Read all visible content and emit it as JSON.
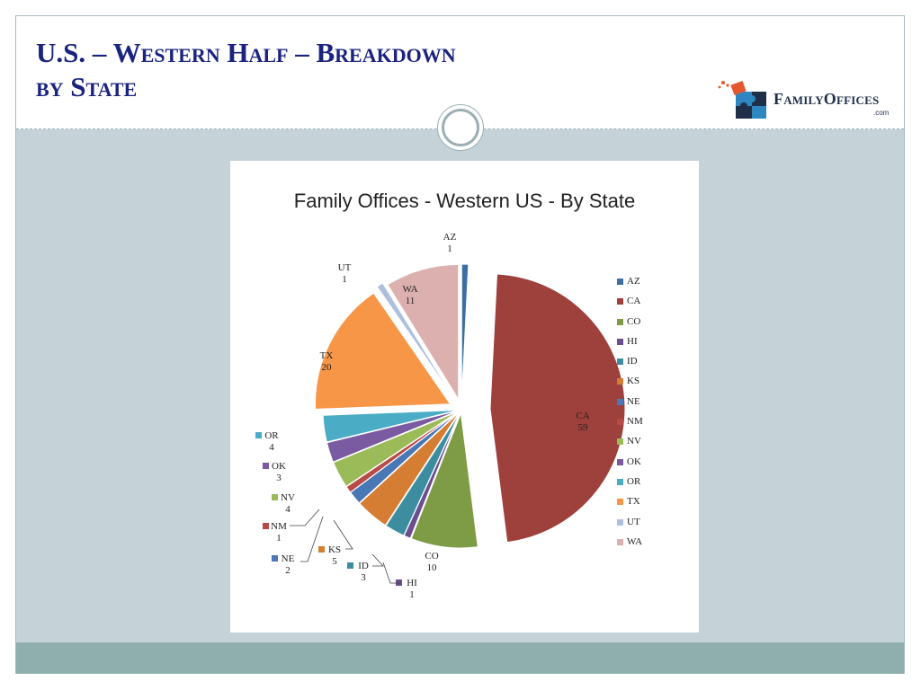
{
  "slide": {
    "title_line1": "U.S. – Western Half – Breakdown",
    "title_line2": "by State"
  },
  "logo": {
    "name": "FamilyOffices",
    "sub": ".com",
    "colors": {
      "navy": "#1f2f4a",
      "orange": "#e4572e",
      "blue": "#2e86c1"
    }
  },
  "chart_data": {
    "type": "pie",
    "title": "Family Offices - Western US - By State",
    "slices": [
      {
        "label": "AZ",
        "value": 1,
        "color": "#3a6ea5"
      },
      {
        "label": "CA",
        "value": 59,
        "color": "#9e413c"
      },
      {
        "label": "CO",
        "value": 10,
        "color": "#7e9c45"
      },
      {
        "label": "HI",
        "value": 1,
        "color": "#6a4e8f"
      },
      {
        "label": "ID",
        "value": 3,
        "color": "#3d8da0"
      },
      {
        "label": "KS",
        "value": 5,
        "color": "#d57d33"
      },
      {
        "label": "NE",
        "value": 2,
        "color": "#4a77b5"
      },
      {
        "label": "NM",
        "value": 1,
        "color": "#b84a47"
      },
      {
        "label": "NV",
        "value": 4,
        "color": "#9bbb59"
      },
      {
        "label": "OK",
        "value": 3,
        "color": "#7a5aa0"
      },
      {
        "label": "OR",
        "value": 4,
        "color": "#4bacc6"
      },
      {
        "label": "TX",
        "value": 20,
        "color": "#f79646"
      },
      {
        "label": "UT",
        "value": 1,
        "color": "#aebfdd"
      },
      {
        "label": "WA",
        "value": 11,
        "color": "#dcb0ae"
      }
    ],
    "legend": [
      "AZ",
      "CA",
      "CO",
      "HI",
      "ID",
      "KS",
      "NE",
      "NM",
      "NV",
      "OK",
      "OR",
      "TX",
      "UT",
      "WA"
    ],
    "legend_position": "right"
  },
  "theme": {
    "title_color": "#1a237e",
    "band_color": "#c5d3d9",
    "footer_color": "#8fafaf"
  }
}
